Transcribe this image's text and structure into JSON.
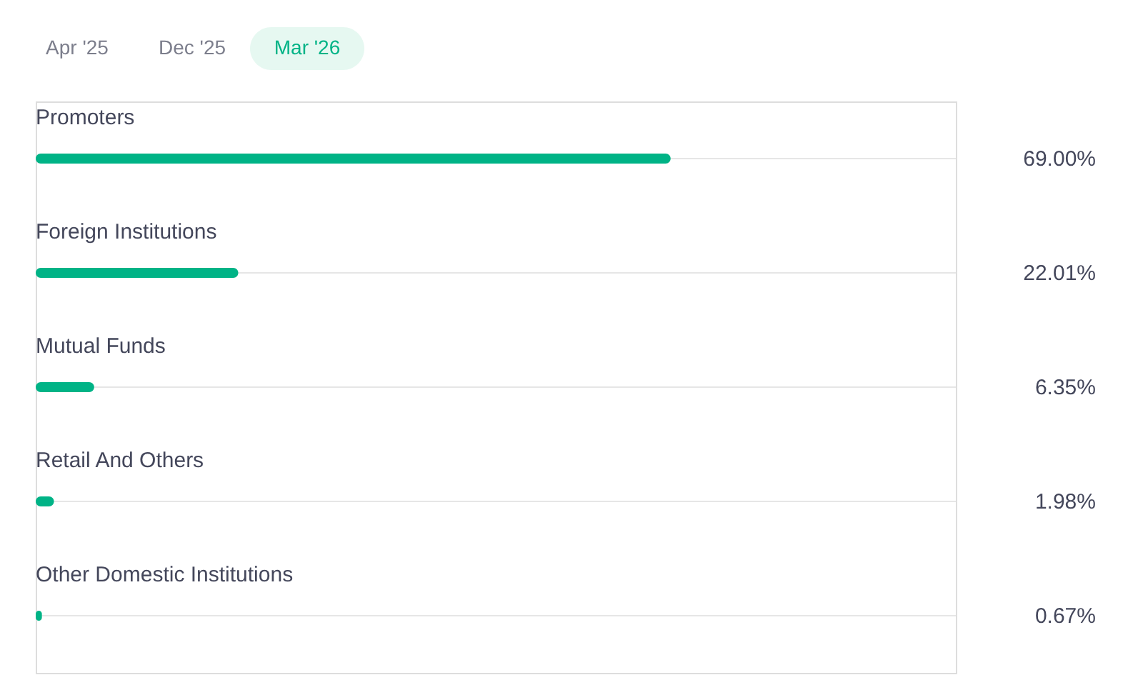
{
  "chart_data": {
    "type": "bar",
    "orientation": "horizontal",
    "categories": [
      "Promoters",
      "Foreign Institutions",
      "Mutual Funds",
      "Retail And Others",
      "Other Domestic Institutions"
    ],
    "values": [
      69.0,
      22.01,
      6.35,
      1.98,
      0.67
    ],
    "value_labels": [
      "69.00%",
      "22.01%",
      "6.35%",
      "1.98%",
      "0.67%"
    ],
    "color": "#00b386",
    "xlim": [
      0,
      100
    ],
    "tick_labels": "y",
    "annotations": [
      "Apr '25",
      "Dec '25",
      "Mar '26"
    ]
  }
}
